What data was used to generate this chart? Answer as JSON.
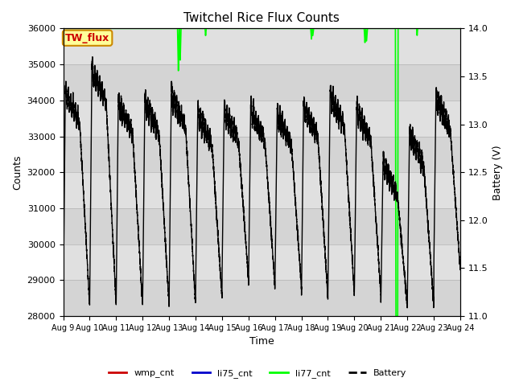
{
  "title": "Twitchel Rice Flux Counts",
  "ylabel_left": "Counts",
  "ylabel_right": "Battery (V)",
  "xlabel": "Time",
  "ylim_left": [
    28000,
    36000
  ],
  "ylim_right": [
    11.0,
    14.0
  ],
  "x_tick_labels": [
    "Aug 9",
    "Aug 10",
    "Aug 11",
    "Aug 12",
    "Aug 13",
    "Aug 14",
    "Aug 15",
    "Aug 16",
    "Aug 17",
    "Aug 18",
    "Aug 19",
    "Aug 20",
    "Aug 21",
    "Aug 22",
    "Aug 23",
    "Aug 24"
  ],
  "background_color": "#ffffff",
  "plot_bg_color": "#e0e0e0",
  "annotation_box": {
    "text": "TW_flux",
    "facecolor": "#ffff99",
    "edgecolor": "#cc8800",
    "textcolor": "#cc0000",
    "fontsize": 9,
    "fontweight": "bold"
  },
  "li77_color": "#00ff00",
  "battery_color": "#000000",
  "wmp_color": "#cc0000",
  "li75_color": "#0000cc",
  "band_colors": [
    "#d4d4d4",
    "#e0e0e0"
  ],
  "band_values": [
    28000,
    29000,
    30000,
    31000,
    32000,
    33000,
    34000,
    35000,
    36000
  ]
}
